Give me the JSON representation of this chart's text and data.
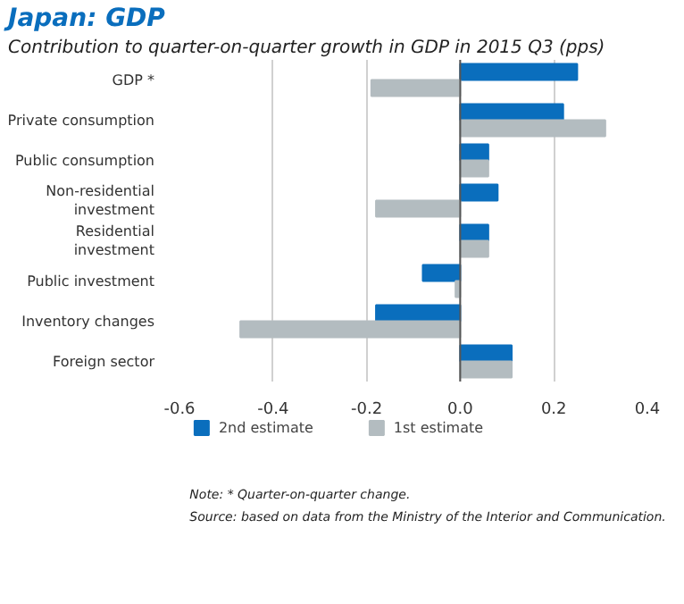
{
  "chart_data": {
    "type": "bar",
    "orientation": "horizontal",
    "title": "Japan: GDP",
    "subtitle": "Contribution to quarter-on-quarter growth in GDP in 2015 Q3 (pps)",
    "categories": [
      "GDP *",
      "Private consumption",
      "Public consumption",
      "Non-residential\ninvestment",
      "Residential\ninvestment",
      "Public investment",
      "Inventory changes",
      "Foreign sector"
    ],
    "series": [
      {
        "name": "2nd estimate",
        "color": "#0a6ebd",
        "values": [
          0.25,
          0.22,
          0.06,
          0.08,
          0.06,
          -0.08,
          -0.18,
          0.11
        ]
      },
      {
        "name": "1st estimate",
        "color": "#b3bcc0",
        "values": [
          -0.19,
          0.31,
          0.06,
          -0.18,
          0.06,
          -0.01,
          -0.47,
          0.11
        ]
      }
    ],
    "xlim": [
      -0.6,
      0.4
    ],
    "xticks": [
      -0.6,
      -0.4,
      -0.2,
      {
        "value": 0,
        "label": "0.0"
      },
      0.2,
      0.4
    ],
    "grid": "x",
    "legend": "bottom",
    "annotations": [
      "Note: * Quarter-on-quarter change.",
      "Source: based on data from the Ministry of the Interior and Communication."
    ]
  }
}
